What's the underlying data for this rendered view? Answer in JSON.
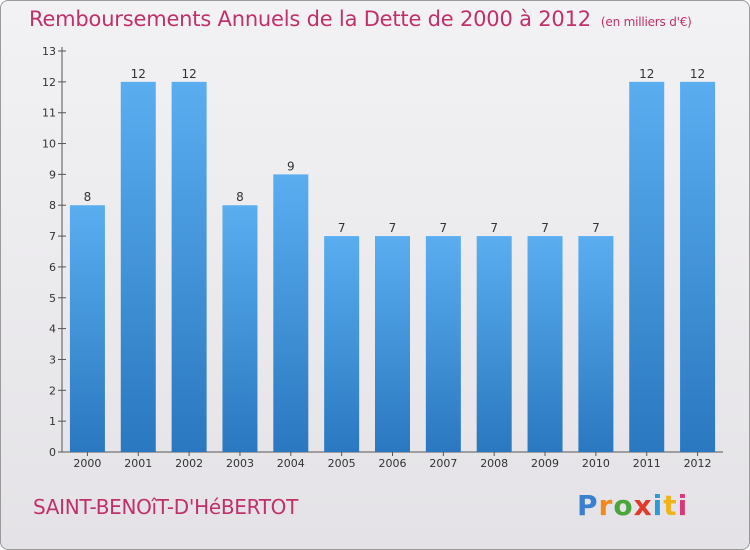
{
  "header": {
    "title": "Remboursements Annuels de la Dette de 2000 à 2012",
    "unit": "(en milliers d'€)"
  },
  "footer": {
    "commune": "SAINT-BENOîT-D'HéBERTOT",
    "logo": "Proxiti"
  },
  "colors": {
    "title": "#c0306a",
    "bar_light": "#5aaef0",
    "bar_dark": "#2a78c0"
  },
  "chart_data": {
    "type": "bar",
    "title": "Remboursements Annuels de la Dette de 2000 à 2012",
    "subtitle": "(en milliers d'€)",
    "categories": [
      "2000",
      "2001",
      "2002",
      "2003",
      "2004",
      "2005",
      "2006",
      "2007",
      "2008",
      "2009",
      "2010",
      "2011",
      "2012"
    ],
    "values": [
      8,
      12,
      12,
      8,
      9,
      7,
      7,
      7,
      7,
      7,
      7,
      12,
      12
    ],
    "ylim": [
      0,
      13
    ],
    "yticks": [
      0,
      1,
      2,
      3,
      4,
      5,
      6,
      7,
      8,
      9,
      10,
      11,
      12,
      13
    ],
    "grid": false,
    "legend": "none"
  }
}
